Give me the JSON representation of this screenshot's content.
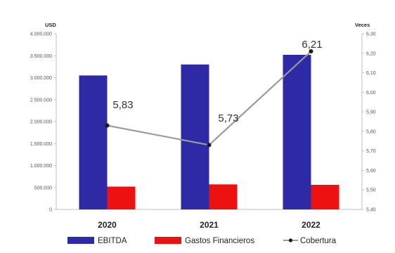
{
  "chart_data": {
    "type": "bar",
    "categories": [
      "2020",
      "2021",
      "2022"
    ],
    "series": [
      {
        "name": "EBITDA",
        "type": "bar",
        "axis": "left",
        "color": "#2e2aa6",
        "values": [
          3050000,
          3300000,
          3520000
        ]
      },
      {
        "name": "Gastos Financieros",
        "type": "bar",
        "axis": "left",
        "color": "#ee1111",
        "values": [
          520000,
          570000,
          560000
        ]
      },
      {
        "name": "Cobertura",
        "type": "line",
        "axis": "right",
        "color": "#9a9a9a",
        "marker_color": "#1a1a1a",
        "values": [
          5.83,
          5.73,
          6.21
        ]
      }
    ],
    "data_labels": [
      "5,83",
      "5,73",
      "6,21"
    ],
    "left_axis": {
      "unit_label": "USD",
      "ylim": [
        0,
        4000000
      ],
      "ticks": [
        0,
        500000,
        1000000,
        1500000,
        2000000,
        2500000,
        3000000,
        3500000,
        4000000
      ],
      "tick_labels": [
        "0",
        "500.000",
        "1.000.000",
        "1.500.000",
        "2.000.000",
        "2.500.000",
        "3.000.000",
        "3.500.000",
        "4.000.000"
      ]
    },
    "right_axis": {
      "unit_label": "Veces",
      "ylim": [
        5.4,
        6.3
      ],
      "ticks": [
        5.4,
        5.5,
        5.6,
        5.7,
        5.8,
        5.9,
        6.0,
        6.1,
        6.2,
        6.3
      ],
      "tick_labels": [
        "5,40",
        "5,50",
        "5,60",
        "5,70",
        "5,80",
        "5,90",
        "6,00",
        "6,10",
        "6,20",
        "6,30"
      ]
    },
    "grid": false,
    "legend_position": "bottom"
  }
}
